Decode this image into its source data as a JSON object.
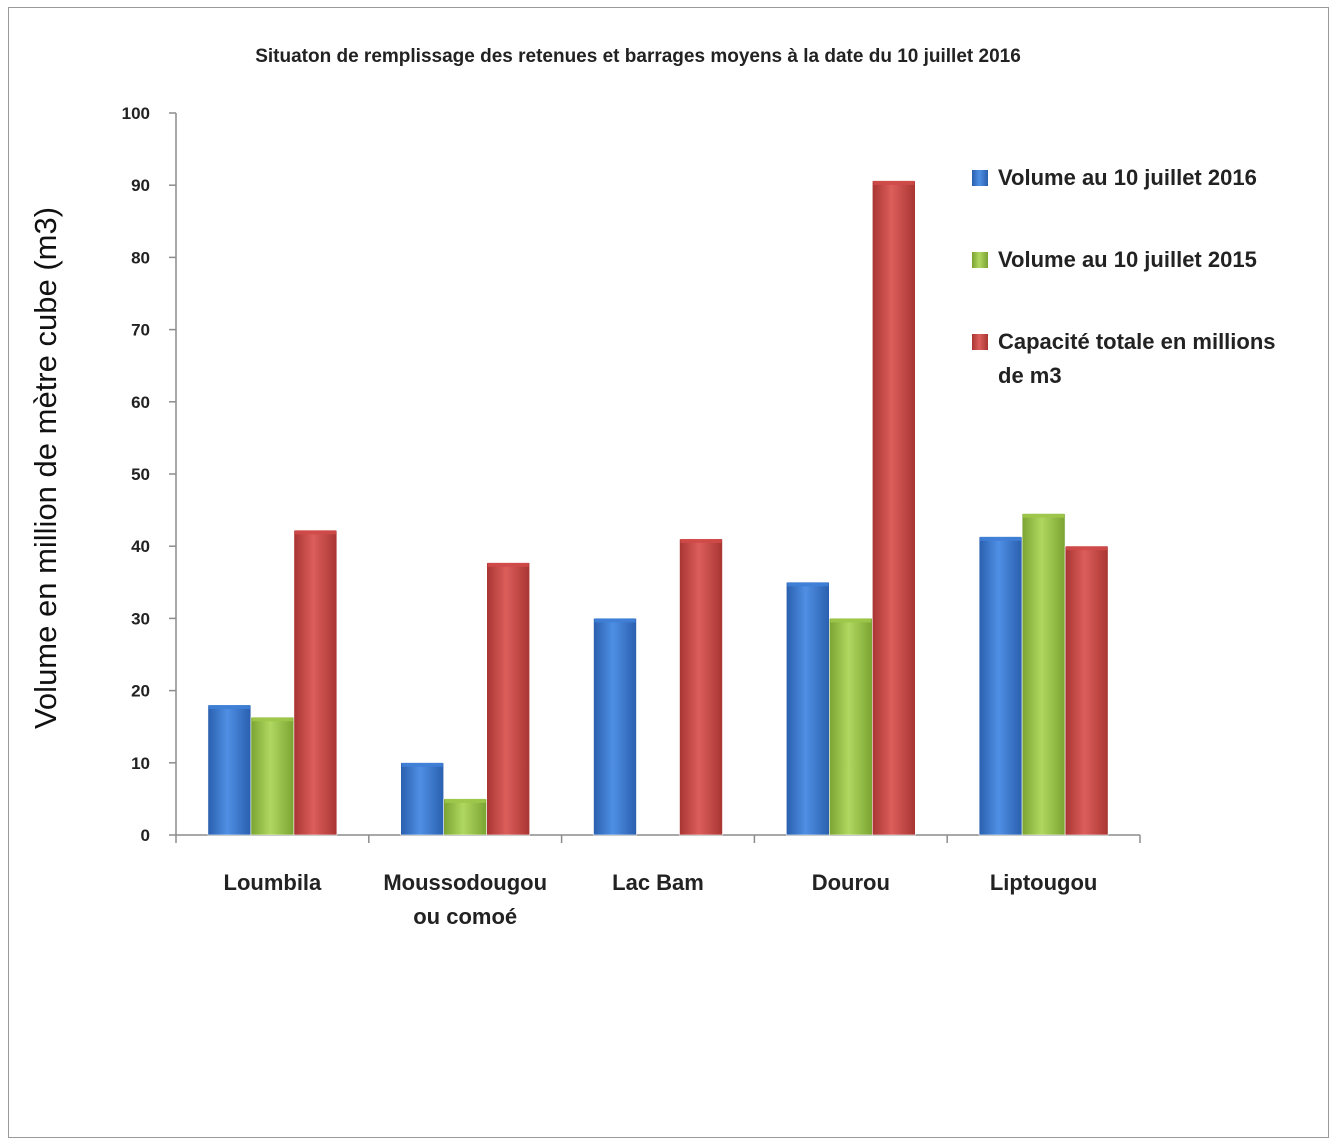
{
  "chart_data": {
    "type": "bar",
    "title": "Situaton de remplissage des retenues et barrages moyens à la date du 10 juillet 2016",
    "xlabel": "",
    "ylabel": "Volume en million de mètre cube (m3)",
    "ylim": [
      0,
      100
    ],
    "yticks": [
      0,
      10,
      20,
      30,
      40,
      50,
      60,
      70,
      80,
      90,
      100
    ],
    "categories": [
      [
        "Loumbila"
      ],
      [
        "Moussodougou",
        "ou comoé"
      ],
      [
        "Lac Bam"
      ],
      [
        "Dourou"
      ],
      [
        "Liptougou"
      ]
    ],
    "series": [
      {
        "name": "Volume au 10 juillet 2016",
        "color": "#3f7fd6",
        "values": [
          18,
          10,
          30,
          35,
          41.3
        ]
      },
      {
        "name": "Volume au  10 juillet 2015",
        "color": "#9dc64a",
        "values": [
          16.3,
          5,
          null,
          30,
          44.5
        ]
      },
      {
        "name": [
          "Capacité totale en millions",
          "de m3"
        ],
        "color": "#cf4a48",
        "values": [
          42.2,
          37.7,
          41,
          90.6,
          40
        ]
      }
    ],
    "legend_position": "right",
    "grid": false
  }
}
